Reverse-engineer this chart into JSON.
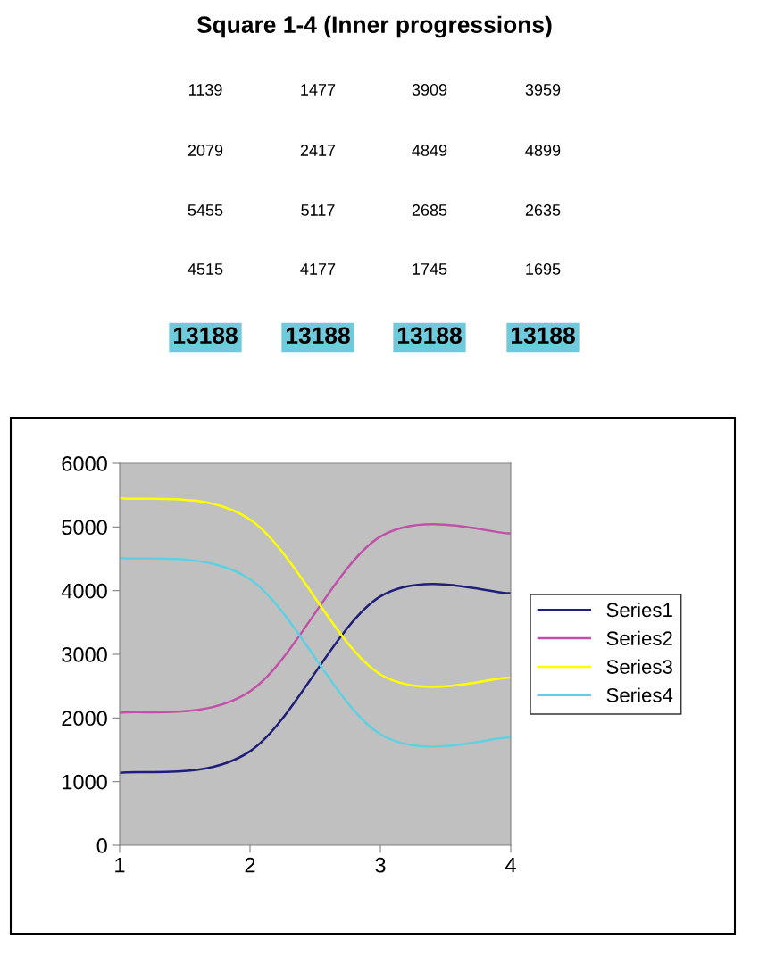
{
  "chart_data": [
    {
      "type": "other",
      "title": "Square 1-4 (Inner progressions)",
      "annotations": [
        "1139",
        "1477",
        "3909",
        "3959",
        "2079",
        "2417",
        "4849",
        "4899",
        "5455",
        "5117",
        "2685",
        "2635",
        "4515",
        "4177",
        "1745",
        "1695",
        "13188",
        "13188",
        "13188",
        "13188"
      ]
    },
    {
      "type": "line",
      "x": [
        1,
        2,
        3,
        4
      ],
      "series": [
        {
          "name": "Series1",
          "color": "#1f1f78",
          "values": [
            1139,
            1477,
            3909,
            3959
          ]
        },
        {
          "name": "Series2",
          "color": "#c050a8",
          "values": [
            2079,
            2417,
            4849,
            4899
          ]
        },
        {
          "name": "Series3",
          "color": "#ffff00",
          "values": [
            5455,
            5117,
            2685,
            2635
          ]
        },
        {
          "name": "Series4",
          "color": "#5fd0e0",
          "values": [
            4515,
            4177,
            1745,
            1695
          ]
        }
      ],
      "xlim": [
        1,
        4
      ],
      "xticks": [
        1,
        2,
        3,
        4
      ],
      "ylim": [
        0,
        6000
      ],
      "yticks": [
        0,
        1000,
        2000,
        3000,
        4000,
        5000,
        6000
      ],
      "grid": false,
      "legend": "right",
      "marker": "none",
      "line_style": "solid"
    }
  ]
}
